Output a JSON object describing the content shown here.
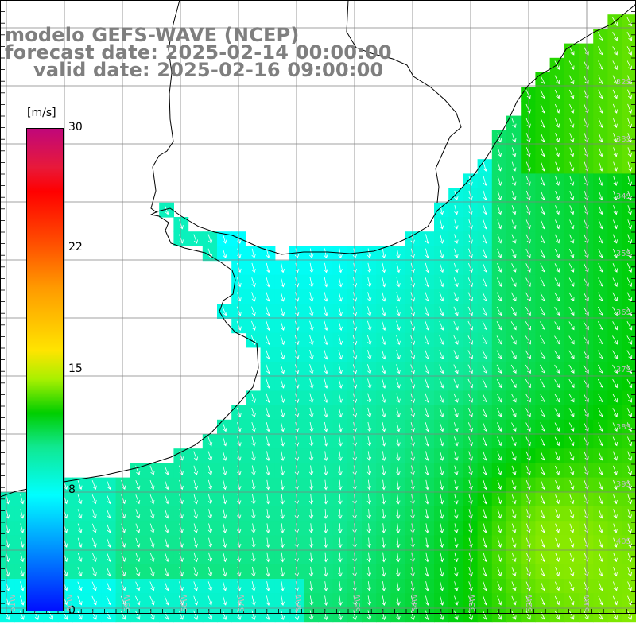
{
  "title": {
    "line1": "modelo GEFS-WAVE (NCEP)",
    "line2": "forecast date: 2025-02-14 00:00:00",
    "line3": "valid date: 2025-02-16 09:00:00"
  },
  "colorbar": {
    "unit": "[m/s]",
    "ticks": [
      "30",
      "22",
      "15",
      "8",
      "0"
    ],
    "tick_values": [
      30,
      22,
      15,
      8,
      0
    ],
    "min": 0,
    "max": 30
  },
  "map": {
    "lat_labels": [
      "32S",
      "33S",
      "34S",
      "35S",
      "36S",
      "37S",
      "38S",
      "39S",
      "40S"
    ],
    "lon_labels": [
      "61W",
      "60W",
      "59W",
      "58W",
      "57W",
      "56W",
      "55W",
      "54W",
      "53W",
      "52W",
      "51W"
    ],
    "land_color": "#ffffff",
    "grid_color": "#808080",
    "arrow_color": "#ffffff",
    "field_description": "wind speed with direction arrows"
  }
}
